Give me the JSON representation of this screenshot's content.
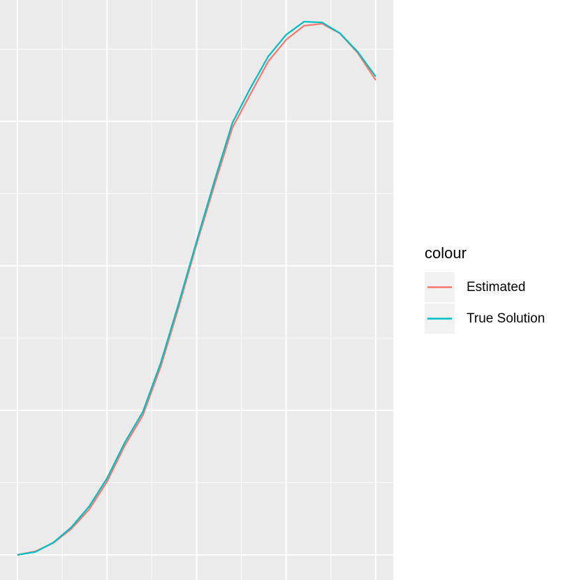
{
  "chart_data": {
    "type": "line",
    "x": [
      0,
      0.2,
      0.4,
      0.6,
      0.8,
      1,
      1.2,
      1.4,
      1.6,
      1.8,
      2,
      2.2,
      2.4,
      2.6,
      2.8,
      3,
      3.2,
      3.4,
      3.6,
      3.8,
      4
    ],
    "series": [
      {
        "name": "Estimated",
        "color": "#F8766D",
        "values": [
          0,
          0.024,
          0.082,
          0.179,
          0.314,
          0.507,
          0.758,
          0.966,
          1.304,
          1.715,
          2.15,
          2.56,
          2.957,
          3.188,
          3.415,
          3.565,
          3.662,
          3.676,
          3.609,
          3.473,
          3.285
        ]
      },
      {
        "name": "True Solution",
        "color": "#00BFC4",
        "values": [
          0,
          0.02,
          0.085,
          0.19,
          0.335,
          0.53,
          0.78,
          0.99,
          1.33,
          1.74,
          2.17,
          2.59,
          2.99,
          3.23,
          3.45,
          3.6,
          3.69,
          3.685,
          3.61,
          3.48,
          3.31
        ]
      }
    ],
    "xlim": [
      -0.195,
      4.195
    ],
    "ylim": [
      -0.174,
      3.84
    ],
    "xticks": [
      0,
      1,
      2,
      3,
      4
    ],
    "yticks": [
      0,
      1,
      2,
      3
    ],
    "xminor": [
      0.5,
      1.5,
      2.5,
      3.5
    ],
    "yminor": [
      0.5,
      1.5,
      2.5,
      3.5
    ],
    "grid": true,
    "legend_title": "colour"
  }
}
